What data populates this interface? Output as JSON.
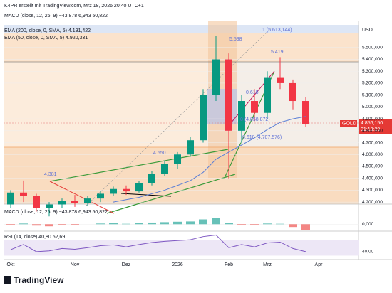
{
  "header": "K4PR erstellt mit TradingView.com, Mrz 18, 2026 20:40 UTC+1",
  "footer": "TradingView",
  "chart_data": [
    {
      "type": "candlestick",
      "currency": "USD",
      "symbol": "GOLD",
      "last_price_label": "4.856,150",
      "countdown": "01:19:29",
      "legend": [
        "MACD (close, 12, 26, 9)  −43,878  6,943  50,822",
        "EMA (200, close, 0, SMA, 5)  4.191,422",
        "EMA (50, close, 0, SMA, 5)  4.920,331"
      ],
      "annotations": [
        "5.598",
        "5.419",
        "4.550",
        "4.381",
        "1 (5.613,144)",
        "0.618 (4.707,576)",
        "0 (4.858,872)",
        "0.618"
      ],
      "categories": [
        "Okt",
        null,
        null,
        null,
        null,
        "Nov",
        null,
        null,
        null,
        "Dez",
        null,
        null,
        null,
        "2026",
        null,
        null,
        null,
        "Feb",
        null,
        null,
        "Mrz",
        null,
        null,
        null,
        "Apr"
      ],
      "open": [
        4180,
        4280,
        4250,
        4150,
        4180,
        4210,
        4190,
        4230,
        4270,
        4310,
        4290,
        4360,
        4440,
        4520,
        4600,
        4720,
        5100,
        5400,
        4800,
        5050,
        4950,
        5250,
        5200,
        5050,
        null
      ],
      "high": [
        4300,
        4381,
        4270,
        4200,
        4230,
        4260,
        4250,
        4290,
        4330,
        4340,
        4380,
        4460,
        4550,
        4620,
        4750,
        5150,
        5598,
        5450,
        5100,
        5150,
        5300,
        5419,
        5230,
        5080,
        null
      ],
      "low": [
        4150,
        4200,
        4120,
        4080,
        4150,
        4160,
        4170,
        4200,
        4250,
        4260,
        4280,
        4340,
        4420,
        4480,
        4580,
        4700,
        5050,
        4400,
        4700,
        4880,
        4900,
        5150,
        4980,
        4830,
        null
      ],
      "close": [
        4280,
        4250,
        4150,
        4180,
        4210,
        4190,
        4230,
        4270,
        4310,
        4290,
        4360,
        4440,
        4520,
        4600,
        4720,
        5100,
        5400,
        4800,
        5050,
        4950,
        5250,
        5200,
        5050,
        4856.15,
        null
      ],
      "up_color": "#089981",
      "down_color": "#f23645",
      "ema_color": "#5b7fd6",
      "ema50": [
        null,
        null,
        null,
        null,
        null,
        null,
        null,
        null,
        4200,
        4220,
        4240,
        4270,
        4300,
        4340,
        4380,
        4450,
        4560,
        4620,
        4680,
        4740,
        4810,
        4870,
        4900,
        4920,
        null
      ],
      "ylim": [
        4165,
        5690
      ],
      "yticks": [
        {
          "value": 4200,
          "label": "4.200,000"
        },
        {
          "value": 4300,
          "label": "4.300,000"
        },
        {
          "value": 4400,
          "label": "4.400,000"
        },
        {
          "value": 4500,
          "label": "4.500,000"
        },
        {
          "value": 4600,
          "label": "4.600,000"
        },
        {
          "value": 4700,
          "label": "4.700,000"
        },
        {
          "value": 4800,
          "label": "4.800,000"
        },
        {
          "value": 4900,
          "label": "4.900,000"
        },
        {
          "value": 5000,
          "label": "5.000,000"
        },
        {
          "value": 5100,
          "label": "5.100,000"
        },
        {
          "value": 5200,
          "label": "5.200,000"
        },
        {
          "value": 5300,
          "label": "5.300,000"
        },
        {
          "value": 5400,
          "label": "5.400,000"
        },
        {
          "value": 5500,
          "label": "5.500,000"
        }
      ]
    },
    {
      "type": "bar",
      "title": "MACD (close, 12, 26, 9)  −43,878  6,943  50,822",
      "values": [
        -5,
        5,
        -10,
        -15,
        -8,
        -5,
        0,
        5,
        8,
        3,
        8,
        12,
        15,
        18,
        20,
        35,
        45,
        10,
        -5,
        -8,
        5,
        3,
        -20,
        -40
      ],
      "color": "#26a69a",
      "neg_color": "#ef5350",
      "ylim": [
        -50,
        120
      ],
      "yticks": [
        {
          "value": 0,
          "label": "0,000"
        }
      ]
    },
    {
      "type": "line",
      "title": "RSI (14, close)  40,80  52,69",
      "values": [
        45,
        58,
        40,
        42,
        48,
        46,
        50,
        55,
        57,
        52,
        58,
        63,
        66,
        68,
        70,
        78,
        82,
        50,
        58,
        52,
        62,
        64,
        48,
        40
      ],
      "color": "#7e57c2",
      "ylim": [
        20,
        90
      ],
      "yticks": [
        {
          "value": 40,
          "label": "40,00"
        }
      ]
    }
  ]
}
